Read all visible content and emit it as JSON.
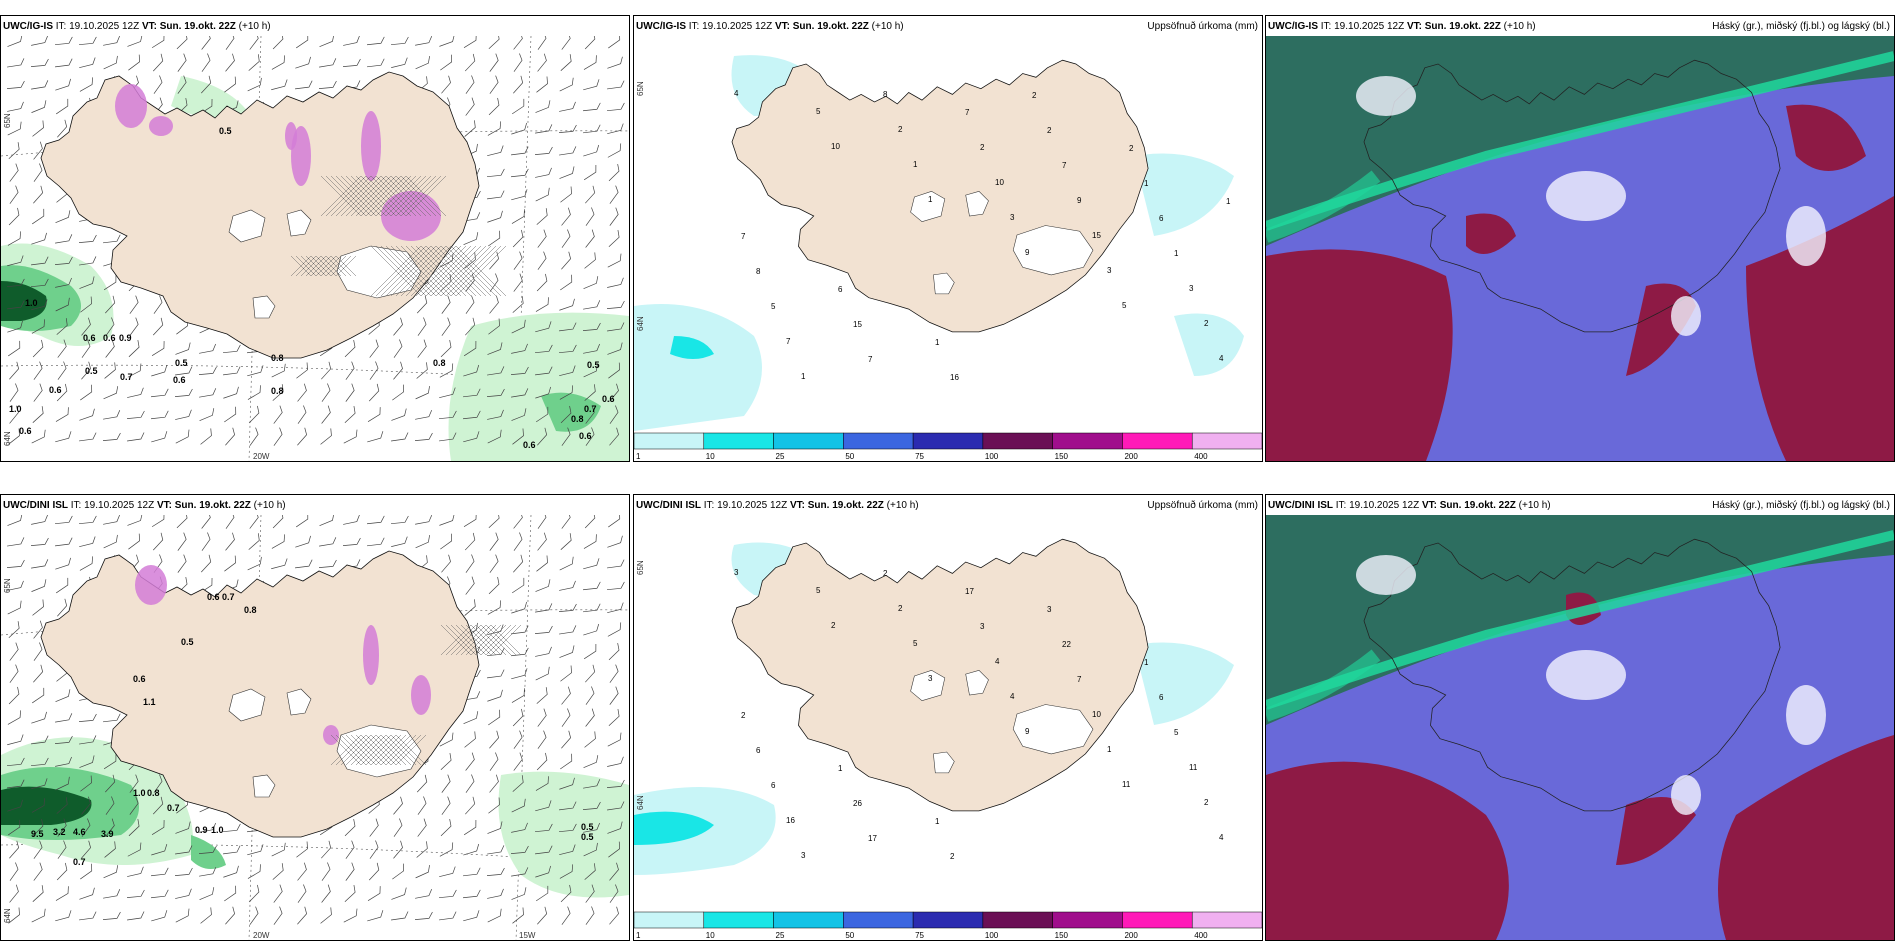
{
  "rows": [
    {
      "id": "top",
      "left": {
        "model": "UWC/IG-IS",
        "it_label": "IT:",
        "it_value": "19.10.2025 12Z",
        "vt_label": "VT:",
        "vt_value": "Sun. 19.okt. 22Z",
        "lead": "(+10 h)"
      },
      "middle": {
        "model": "UWC/IG-IS",
        "it_label": "IT:",
        "it_value": "19.10.2025 12Z",
        "vt_label": "VT:",
        "vt_value": "Sun. 19.okt. 22Z",
        "lead": "(+10 h)",
        "title_right": "Uppsöfnuð úrkoma (mm)"
      },
      "right": {
        "model": "UWC/IG-IS",
        "it_label": "IT:",
        "it_value": "19.10.2025 12Z",
        "vt_label": "VT:",
        "vt_value": "Sun. 19.okt. 22Z",
        "lead": "(+10 h)",
        "title_right": "Háský (gr.), miðský (fj.bl.) og lágský (bl.)"
      },
      "left_labels": [
        "1.0",
        "0.5",
        "0.6",
        "0.6",
        "0.9",
        "0.5",
        "0.7",
        "0.6",
        "0.6",
        "0.5",
        "0.8",
        "0.8",
        "0.8",
        "0.5",
        "0.6",
        "0.7",
        "0.8",
        "0.6",
        "0.6",
        "1.0",
        "0.6"
      ],
      "mid_labels": [
        "4",
        "10",
        "1",
        "9",
        "5",
        "4",
        "5",
        "1",
        "3",
        "3",
        "2",
        "1",
        "2",
        "10",
        "15",
        "3",
        "7",
        "8",
        "2",
        "9",
        "1",
        "5",
        "7",
        "7",
        "7",
        "6",
        "8",
        "15",
        "16",
        "2",
        "1",
        "7",
        "6",
        "1",
        "2",
        "2",
        "1"
      ]
    },
    {
      "id": "bottom",
      "left": {
        "model": "UWC/DINI ISL",
        "it_label": "IT:",
        "it_value": "19.10.2025 12Z",
        "vt_label": "VT:",
        "vt_value": "Sun. 19.okt. 22Z",
        "lead": "(+10 h)"
      },
      "middle": {
        "model": "UWC/DINI ISL",
        "it_label": "IT:",
        "it_value": "19.10.2025 12Z",
        "vt_label": "VT:",
        "vt_value": "Sun. 19.okt. 22Z",
        "lead": "(+10 h)",
        "title_right": "Uppsöfnuð úrkoma (mm)"
      },
      "right": {
        "model": "UWC/DINI ISL",
        "it_label": "IT:",
        "it_value": "19.10.2025 12Z",
        "vt_label": "VT:",
        "vt_value": "Sun. 19.okt. 22Z",
        "lead": "(+10 h)",
        "title_right": "Háský (gr.), miðský (fj.bl.) og lágský (bl.)"
      },
      "left_labels": [
        "0.6",
        "0.7",
        "0.8",
        "0.5",
        "0.6",
        "1.1",
        "1.0",
        "9.5",
        "3.2",
        "4.6",
        "3.9",
        "0.8",
        "0.7",
        "0.9",
        "1.0",
        "0.7",
        "0.5",
        "0.5"
      ],
      "mid_labels": [
        "3",
        "2",
        "3",
        "9",
        "11",
        "4",
        "5",
        "5",
        "4",
        "1",
        "2",
        "3",
        "2",
        "4",
        "10",
        "11",
        "16",
        "2",
        "3",
        "7",
        "5",
        "6",
        "17",
        "17",
        "22",
        "6",
        "6",
        "26",
        "2",
        "3",
        "1",
        "2",
        "1",
        "1"
      ]
    }
  ],
  "axis_labels": {
    "lat_65": "65N",
    "lat_64": "64N",
    "lon_20w": "20W",
    "lon_15w": "15W"
  },
  "colorbar": {
    "ticks": [
      "1",
      "10",
      "25",
      "50",
      "75",
      "100",
      "150",
      "200",
      "400"
    ],
    "colors": [
      "#c8f5f7",
      "#19e6e6",
      "#13c3e6",
      "#3b66e0",
      "#2b2bb0",
      "#6a0f55",
      "#a00e8c",
      "#ff1ab8",
      "#f0b0f0"
    ]
  },
  "colors": {
    "land": "#f2e2d2",
    "precip_light": "#cff3d3",
    "precip_mid": "#6fd08c",
    "precip_dark": "#0f5c2b",
    "snow": "#d47cd7",
    "high_cloud": "#2d6e60",
    "mid_cloud": "#6969d9",
    "low_cloud": "#8e1a45",
    "jet": "#20d89c"
  }
}
